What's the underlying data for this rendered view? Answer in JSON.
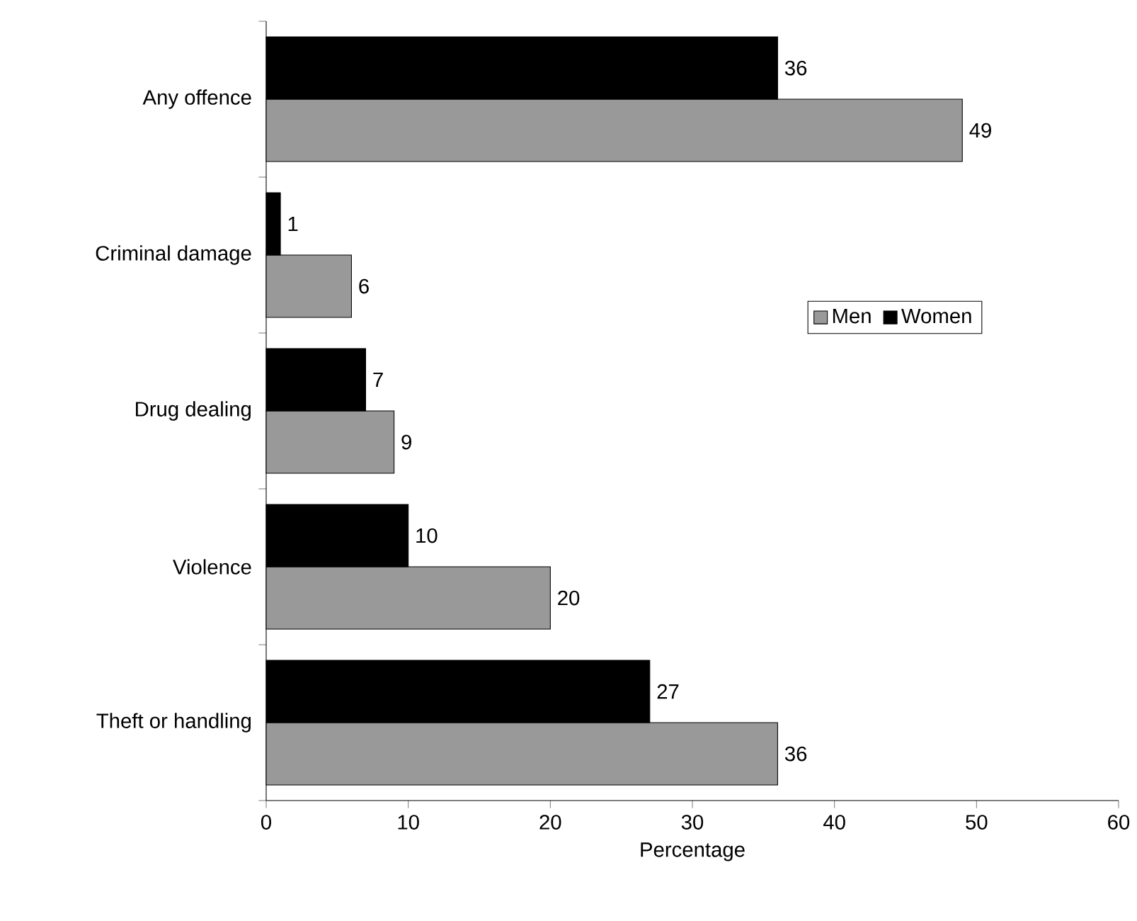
{
  "chart_data": {
    "type": "bar",
    "orientation": "horizontal",
    "xlabel": "Percentage",
    "categories": [
      "Any offence",
      "Criminal damage",
      "Drug dealing",
      "Violence",
      "Theft or handling"
    ],
    "series": [
      {
        "name": "Men",
        "color": "#999999",
        "values": [
          49,
          6,
          9,
          20,
          36
        ]
      },
      {
        "name": "Women",
        "color": "#000000",
        "values": [
          36,
          1,
          7,
          10,
          27
        ]
      }
    ],
    "xlim": [
      0,
      60
    ],
    "xticks": [
      0,
      10,
      20,
      30,
      40,
      50,
      60
    ],
    "data_labels": true,
    "legend": "right",
    "grid": false
  }
}
